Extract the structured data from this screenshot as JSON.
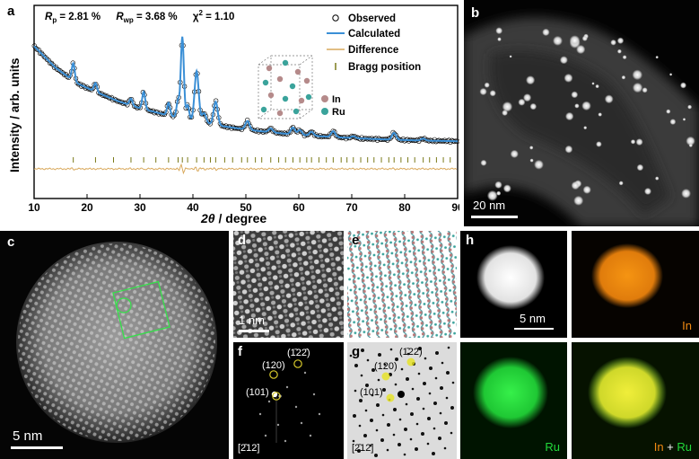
{
  "panel_a": {
    "label": "a",
    "stats": {
      "rp_sym": "R",
      "rp_sub": "p",
      "rp_val": " = 2.81 %",
      "rwp_sym": "R",
      "rwp_sub": "wp",
      "rwp_val": " = 3.68 %",
      "chi_sym": "χ",
      "chi_sup": "2",
      "chi_val": " = 1.10"
    },
    "legend": {
      "observed": "Observed",
      "calculated": "Calculated",
      "difference": "Difference",
      "bragg": "Bragg position"
    },
    "crystal_labels": {
      "in": "In",
      "ru": "Ru"
    },
    "colors": {
      "observed": "#000000",
      "calculated": "#3a8fd6",
      "difference": "#d9a95c",
      "bragg": "#7a7a1a",
      "in": "#b58a8a",
      "ru": "#3aa39b"
    }
  },
  "chart_data": {
    "type": "line",
    "xlabel_sym": "2θ",
    "xlabel_unit": " / degree",
    "ylabel": "Intensity / arb. units",
    "xlim": [
      10,
      90
    ],
    "xticks": [
      "10",
      "20",
      "30",
      "40",
      "50",
      "60",
      "70",
      "80",
      "90"
    ],
    "yticks": [],
    "series": [
      {
        "name": "Observed",
        "kind": "points"
      },
      {
        "name": "Calculated",
        "kind": "line"
      },
      {
        "name": "Difference",
        "kind": "line"
      },
      {
        "name": "Bragg position",
        "kind": "ticks"
      }
    ],
    "background": [
      [
        10,
        108
      ],
      [
        14,
        86
      ],
      [
        18,
        70
      ],
      [
        22,
        60
      ],
      [
        26,
        51
      ],
      [
        30,
        44
      ],
      [
        35,
        37
      ],
      [
        40,
        31
      ],
      [
        45,
        26
      ],
      [
        50,
        22
      ],
      [
        55,
        19
      ],
      [
        60,
        16.5
      ],
      [
        65,
        14.8
      ],
      [
        70,
        13.2
      ],
      [
        75,
        12.1
      ],
      [
        80,
        11.2
      ],
      [
        85,
        10.5
      ],
      [
        90,
        10
      ]
    ],
    "peaks": [
      {
        "x": 17.4,
        "h": 18
      },
      {
        "x": 21.6,
        "h": 9
      },
      {
        "x": 28.3,
        "h": 7
      },
      {
        "x": 30.7,
        "h": 18
      },
      {
        "x": 35.4,
        "h": 13
      },
      {
        "x": 37.2,
        "h": 18
      },
      {
        "x": 38.0,
        "h": 84
      },
      {
        "x": 39.0,
        "h": 15
      },
      {
        "x": 40.7,
        "h": 52
      },
      {
        "x": 42.1,
        "h": 10
      },
      {
        "x": 44.3,
        "h": 24
      },
      {
        "x": 50.3,
        "h": 9
      },
      {
        "x": 54.7,
        "h": 4
      },
      {
        "x": 58.9,
        "h": 7
      },
      {
        "x": 60.2,
        "h": 5
      },
      {
        "x": 62.4,
        "h": 4
      },
      {
        "x": 66.5,
        "h": 6
      },
      {
        "x": 70.3,
        "h": 2
      },
      {
        "x": 78.0,
        "h": 7
      },
      {
        "x": 83.5,
        "h": 2
      }
    ],
    "bragg_positions": [
      17.4,
      21.6,
      25.0,
      28.3,
      30.7,
      33.0,
      35.4,
      37.2,
      38.0,
      39.0,
      40.7,
      42.1,
      43.3,
      44.3,
      46.0,
      47.5,
      49.2,
      50.3,
      51.8,
      53.0,
      54.7,
      56.2,
      57.5,
      58.9,
      60.2,
      61.5,
      62.4,
      63.8,
      65.2,
      66.5,
      68.0,
      69.1,
      70.3,
      71.7,
      73.0,
      74.2,
      75.6,
      77.0,
      78.0,
      79.3,
      80.6,
      81.9,
      83.5,
      84.7,
      86.0,
      87.3,
      88.6
    ]
  },
  "panel_b": {
    "label": "b",
    "scale": "20 nm"
  },
  "panel_c": {
    "label": "c",
    "scale": "5 nm"
  },
  "panel_d": {
    "label": "d",
    "scale": "1 nm"
  },
  "panel_e": {
    "label": "e"
  },
  "panel_f": {
    "label": "f",
    "spots": {
      "s120": "(120)",
      "s122": "(1̄22̄)",
      "s101": "(101)"
    },
    "zone": "[2̄12]"
  },
  "panel_g": {
    "label": "g",
    "spots": {
      "s120": "(120)",
      "s122": "(1̄22̄)",
      "s101": "(101)"
    },
    "zone": "[2̄12]"
  },
  "panel_h": {
    "label": "h",
    "scale": "5 nm",
    "in_label": "In",
    "ru_label": "Ru",
    "merge_in": "In",
    "merge_plus": " + ",
    "merge_ru": "Ru",
    "colors": {
      "in": "#f08a12",
      "ru": "#21d93a",
      "merge": "#e6e22a"
    }
  }
}
